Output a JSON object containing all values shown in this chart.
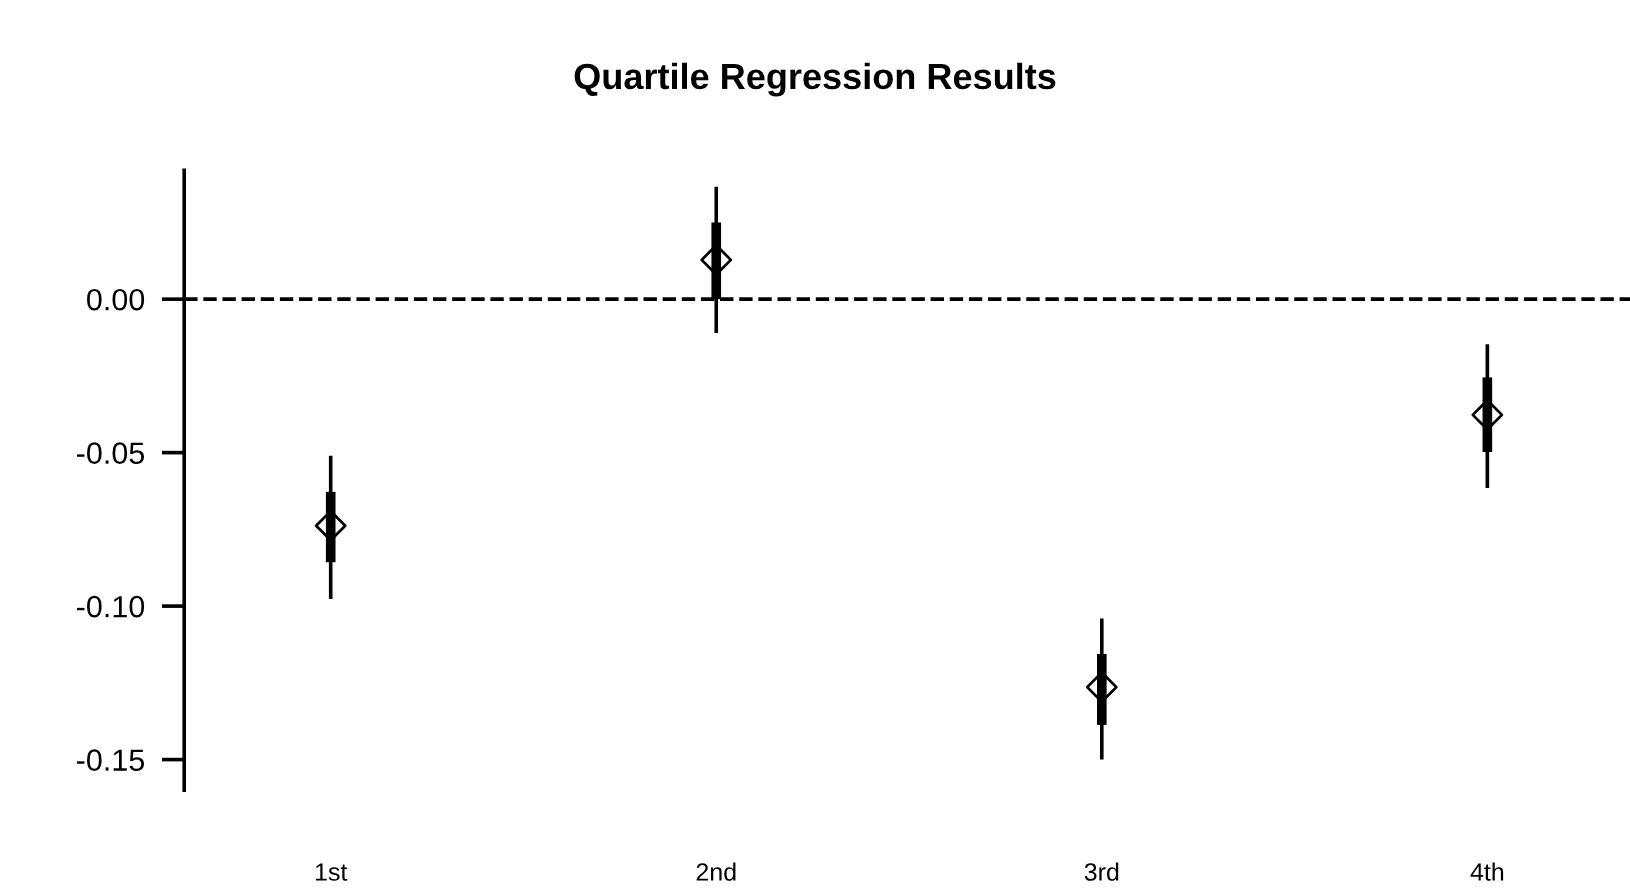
{
  "chart_data": {
    "type": "scatter",
    "title": "Quartile Regression Results",
    "categories": [
      "1st",
      "2nd",
      "3rd",
      "4th"
    ],
    "marker": "diamond",
    "series": [
      {
        "color": "#000000",
        "values": [
          -0.0738,
          0.0128,
          -0.1264,
          -0.0377
        ],
        "errors": [
          [
            -0.0977,
            -0.051
          ],
          [
            -0.011,
            0.0366
          ],
          [
            -0.15,
            -0.104
          ],
          [
            -0.0615,
            -0.0147
          ]
        ]
      },
      {
        "type": "bar",
        "color": "#000000",
        "base": [
          -0.0857,
          0.0,
          -0.1387,
          -0.0498
        ],
        "values": [
          0.0229,
          0.025,
          0.0231,
          0.0243
        ]
      }
    ],
    "ylim": [
      -0.16,
      0.042
    ],
    "yticks": [
      {
        "value": -0.15,
        "label": "-0.15"
      },
      {
        "value": -0.1,
        "label": "-0.10"
      },
      {
        "value": -0.05,
        "label": "-0.05"
      },
      {
        "value": 0,
        "label": "0.00"
      }
    ],
    "ref_lines": [
      {
        "axis": "y",
        "value": 0,
        "line_style": "dashed",
        "color": "#000000"
      }
    ],
    "grid": false,
    "legend": false
  }
}
